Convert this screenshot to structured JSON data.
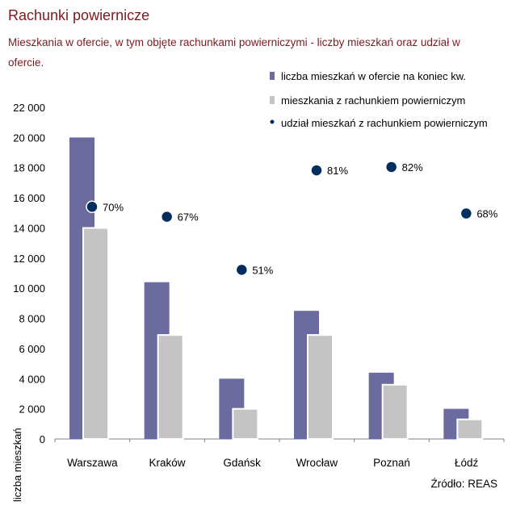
{
  "title": "Rachunki powiernicze",
  "subtitle": "Mieszkania w ofercie, w tym objęte rachunkami powierniczymi - liczby mieszkań oraz udział w ofercie.",
  "source": "Źródło: REAS",
  "colors": {
    "title": "#7b1a1e",
    "offer_bar": "#6b6b9f",
    "escrow_bar": "#c4c4c4",
    "share_dot": "#002f5f"
  },
  "chart_data": {
    "type": "bar",
    "categories": [
      "Warszawa",
      "Kraków",
      "Gdańsk",
      "Wrocław",
      "Poznań",
      "Łódź"
    ],
    "series": [
      {
        "name": "liczba mieszkań w ofercie na koniec kw.",
        "kind": "bar",
        "values": [
          20000,
          10400,
          4000,
          8500,
          4400,
          2000
        ]
      },
      {
        "name": "mieszkania z rachunkiem powierniczym",
        "kind": "bar",
        "values": [
          14000,
          6900,
          2000,
          6900,
          3600,
          1300
        ]
      },
      {
        "name": "udział mieszkań z rachunkiem powierniczym",
        "kind": "scatter",
        "values": [
          70,
          67,
          51,
          81,
          82,
          68
        ],
        "labels": [
          "70%",
          "67%",
          "51%",
          "81%",
          "82%",
          "68%"
        ]
      }
    ],
    "ylabel": "liczba mieszkań",
    "ylim": [
      0,
      22000
    ],
    "yticks": [
      0,
      2000,
      4000,
      6000,
      8000,
      10000,
      12000,
      14000,
      16000,
      18000,
      20000,
      22000
    ],
    "ytick_labels": [
      "0",
      "2 000",
      "4 000",
      "6 000",
      "8 000",
      "10 000",
      "12 000",
      "14 000",
      "16 000",
      "18 000",
      "20 000",
      "22 000"
    ],
    "grid": false,
    "legend_position": "top-right"
  }
}
